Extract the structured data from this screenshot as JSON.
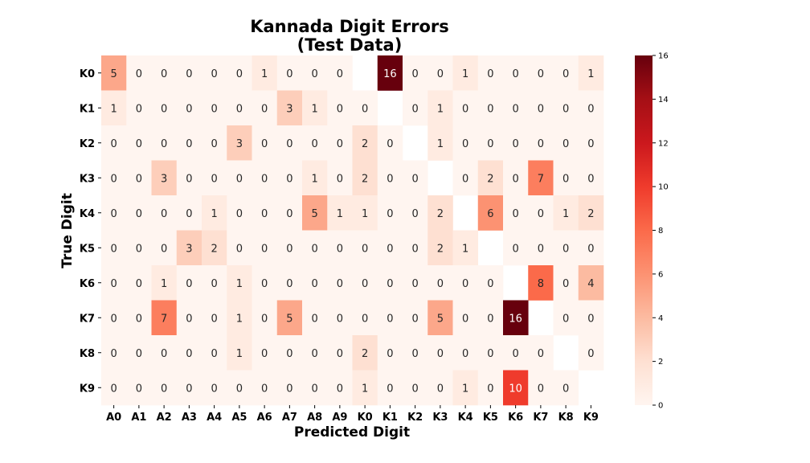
{
  "chart_data": {
    "type": "heatmap",
    "title_lines": [
      "Kannada Digit Errors",
      "(Test Data)"
    ],
    "xlabel": "Predicted Digit",
    "ylabel": "True Digit",
    "x_categories": [
      "A0",
      "A1",
      "A2",
      "A3",
      "A4",
      "A5",
      "A6",
      "A7",
      "A8",
      "A9",
      "K0",
      "K1",
      "K2",
      "K3",
      "K4",
      "K5",
      "K6",
      "K7",
      "K8",
      "K9"
    ],
    "y_categories": [
      "K0",
      "K1",
      "K2",
      "K3",
      "K4",
      "K5",
      "K6",
      "K7",
      "K8",
      "K9"
    ],
    "values": [
      [
        5,
        0,
        0,
        0,
        0,
        0,
        1,
        0,
        0,
        0,
        null,
        16,
        0,
        0,
        1,
        0,
        0,
        0,
        0,
        1
      ],
      [
        1,
        0,
        0,
        0,
        0,
        0,
        0,
        3,
        1,
        0,
        0,
        null,
        0,
        1,
        0,
        0,
        0,
        0,
        0,
        0
      ],
      [
        0,
        0,
        0,
        0,
        0,
        3,
        0,
        0,
        0,
        0,
        2,
        0,
        null,
        1,
        0,
        0,
        0,
        0,
        0,
        0
      ],
      [
        0,
        0,
        3,
        0,
        0,
        0,
        0,
        0,
        1,
        0,
        2,
        0,
        0,
        null,
        0,
        2,
        0,
        7,
        0,
        0
      ],
      [
        0,
        0,
        0,
        0,
        1,
        0,
        0,
        0,
        5,
        1,
        1,
        0,
        0,
        2,
        null,
        6,
        0,
        0,
        1,
        2
      ],
      [
        0,
        0,
        0,
        3,
        2,
        0,
        0,
        0,
        0,
        0,
        0,
        0,
        0,
        2,
        1,
        null,
        0,
        0,
        0,
        0
      ],
      [
        0,
        0,
        1,
        0,
        0,
        1,
        0,
        0,
        0,
        0,
        0,
        0,
        0,
        0,
        0,
        0,
        null,
        8,
        0,
        4
      ],
      [
        0,
        0,
        7,
        0,
        0,
        1,
        0,
        5,
        0,
        0,
        0,
        0,
        0,
        5,
        0,
        0,
        16,
        null,
        0,
        0
      ],
      [
        0,
        0,
        0,
        0,
        0,
        1,
        0,
        0,
        0,
        0,
        2,
        0,
        0,
        0,
        0,
        0,
        0,
        0,
        null,
        0
      ],
      [
        0,
        0,
        0,
        0,
        0,
        0,
        0,
        0,
        0,
        0,
        1,
        0,
        0,
        0,
        1,
        0,
        10,
        0,
        0,
        null
      ]
    ],
    "colormap": "Reds",
    "vmin": 0,
    "vmax": 16,
    "colorbar_ticks": [
      0,
      2,
      4,
      6,
      8,
      10,
      12,
      14,
      16
    ],
    "colorbar_tick_labels": [
      "0",
      "2",
      "4",
      "6",
      "8",
      "10",
      "12",
      "14",
      "16"
    ],
    "annotations": true,
    "grid": false
  }
}
